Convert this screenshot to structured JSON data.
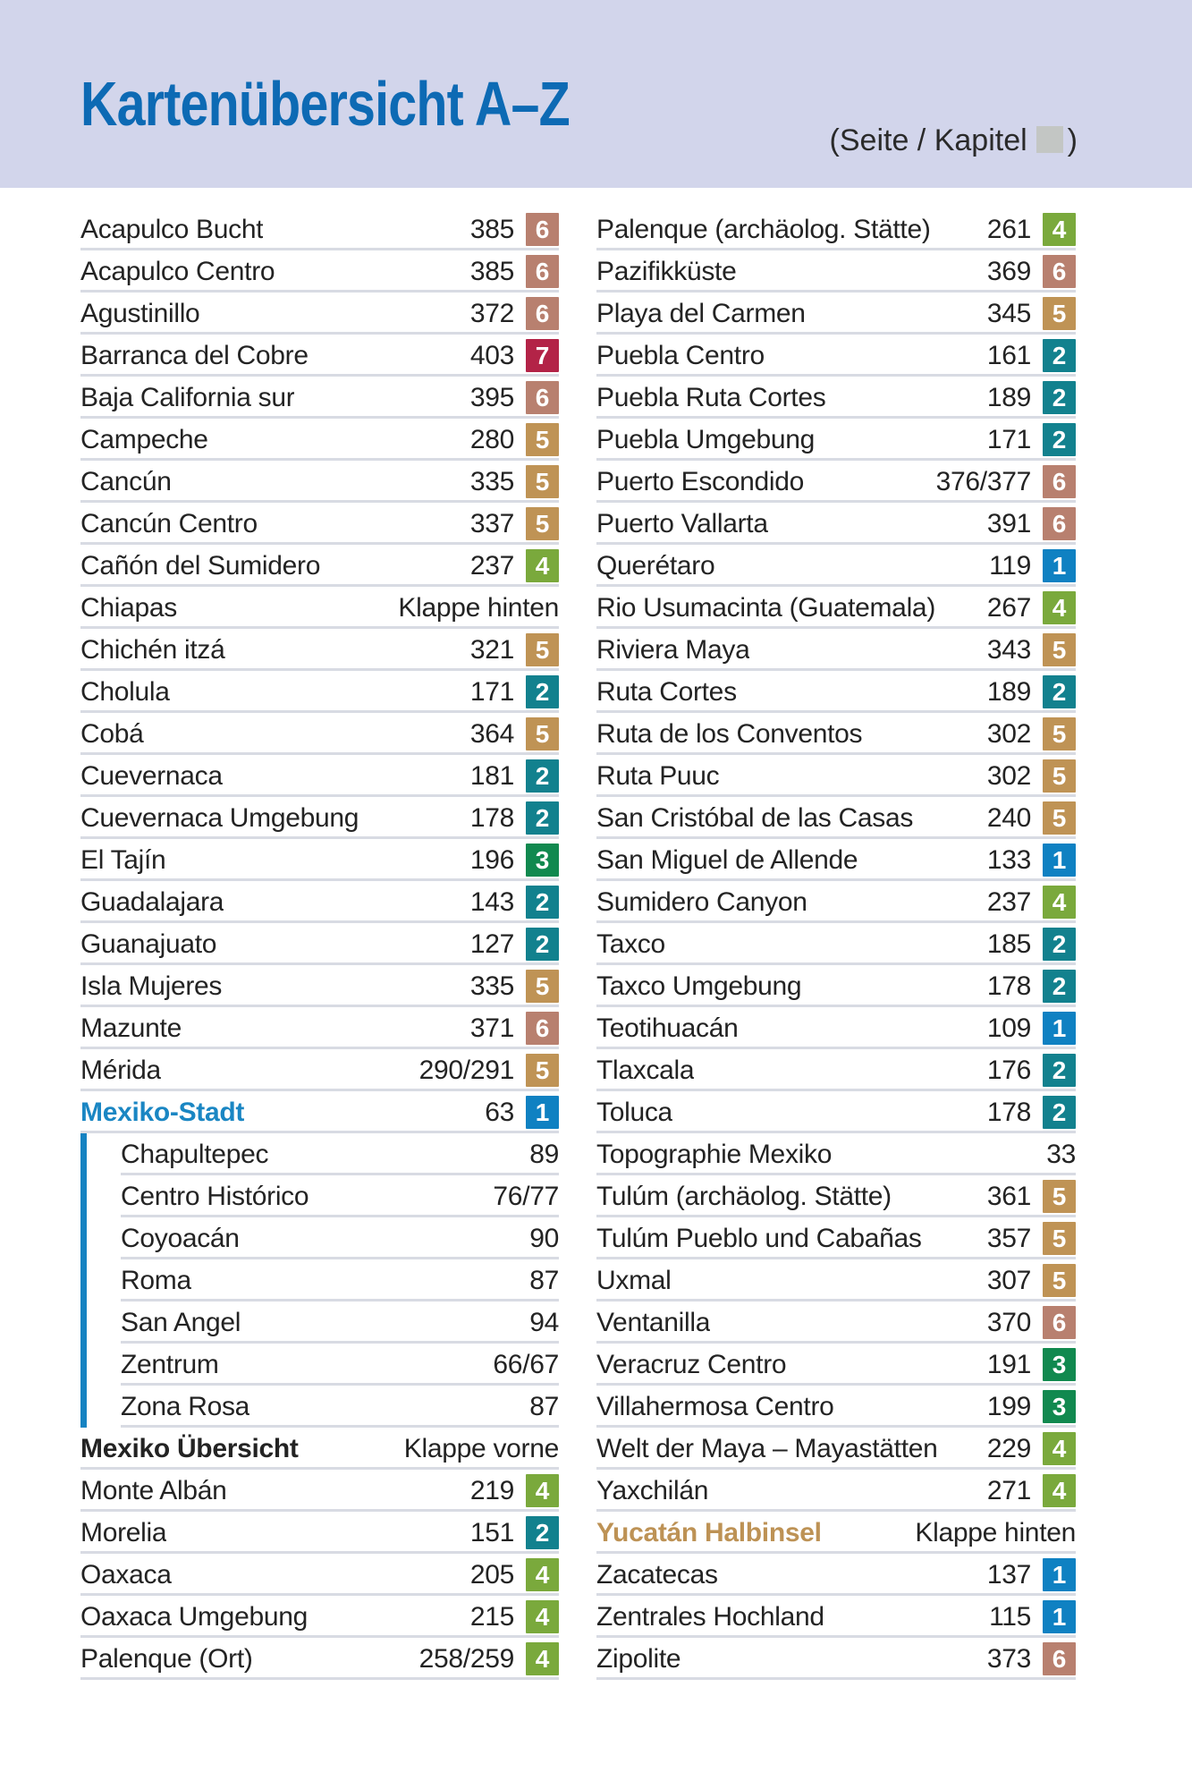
{
  "header": {
    "title": "Kartenübersicht A–Z",
    "legend_prefix": "(Seite / Kapitel",
    "legend_suffix": ")"
  },
  "colors": {
    "header_bg": "#d2d5eb",
    "title_blue": "#0d6ab4",
    "text": "#232323",
    "separator": "#d8dbe3",
    "sub_group_bar": "#1583c2",
    "highlight_blue": "#1a86c3",
    "highlight_tan": "#bd9255",
    "legend_box_gray": "#c3c6c4"
  },
  "badge_colors": {
    "1": "#0f81c2",
    "2": "#12818e",
    "3": "#11894f",
    "4": "#7aa93c",
    "5": "#bf9355",
    "6": "#b8806f",
    "7": "#b32347"
  },
  "index": {
    "columns": {
      "left": [
        {
          "name": "Acapulco Bucht",
          "page": "385",
          "ch": "6"
        },
        {
          "name": "Acapulco Centro",
          "page": "385",
          "ch": "6"
        },
        {
          "name": "Agustinillo",
          "page": "372",
          "ch": "6"
        },
        {
          "name": "Barranca del Cobre",
          "page": "403",
          "ch": "7"
        },
        {
          "name": "Baja California sur",
          "page": "395",
          "ch": "6"
        },
        {
          "name": "Campeche",
          "page": "280",
          "ch": "5"
        },
        {
          "name": "Cancún",
          "page": "335",
          "ch": "5"
        },
        {
          "name": "Cancún Centro",
          "page": "337",
          "ch": "5"
        },
        {
          "name": "Cañón del Sumidero",
          "page": "237",
          "ch": "4"
        },
        {
          "name": "Chiapas",
          "page": "Klappe hinten"
        },
        {
          "name": "Chichén itzá",
          "page": "321",
          "ch": "5"
        },
        {
          "name": "Cholula",
          "page": "171",
          "ch": "2"
        },
        {
          "name": "Cobá",
          "page": "364",
          "ch": "5"
        },
        {
          "name": "Cuevernaca",
          "page": "181",
          "ch": "2"
        },
        {
          "name": "Cuevernaca Umgebung",
          "page": "178",
          "ch": "2"
        },
        {
          "name": "El Tajín",
          "page": "196",
          "ch": "3"
        },
        {
          "name": "Guadalajara",
          "page": "143",
          "ch": "2"
        },
        {
          "name": "Guanajuato",
          "page": "127",
          "ch": "2"
        },
        {
          "name": "Isla Mujeres",
          "page": "335",
          "ch": "5"
        },
        {
          "name": "Mazunte",
          "page": "371",
          "ch": "6"
        },
        {
          "name": "Mérida",
          "page": "290/291",
          "ch": "5"
        },
        {
          "name": "Mexiko-Stadt",
          "page": "63",
          "ch": "1",
          "em": "blue"
        },
        {
          "name": "Chapultepec",
          "page": "89",
          "sub": true
        },
        {
          "name": "Centro Histórico",
          "page": "76/77",
          "sub": true
        },
        {
          "name": "Coyoacán",
          "page": "90",
          "sub": true
        },
        {
          "name": "Roma",
          "page": "87",
          "sub": true
        },
        {
          "name": "San Angel",
          "page": "94",
          "sub": true
        },
        {
          "name": "Zentrum",
          "page": "66/67",
          "sub": true
        },
        {
          "name": "Zona Rosa",
          "page": "87",
          "sub": true
        },
        {
          "name": "Mexiko Übersicht",
          "page": "Klappe vorne",
          "em": "bold"
        },
        {
          "name": "Monte Albán",
          "page": "219",
          "ch": "4"
        },
        {
          "name": "Morelia",
          "page": "151",
          "ch": "2"
        },
        {
          "name": "Oaxaca",
          "page": "205",
          "ch": "4"
        },
        {
          "name": "Oaxaca Umgebung",
          "page": "215",
          "ch": "4"
        },
        {
          "name": "Palenque (Ort)",
          "page": "258/259",
          "ch": "4"
        }
      ],
      "right": [
        {
          "name": "Palenque (archäolog. Stätte)",
          "page": "261",
          "ch": "4"
        },
        {
          "name": "Pazifikküste",
          "page": "369",
          "ch": "6"
        },
        {
          "name": "Playa del Carmen",
          "page": "345",
          "ch": "5"
        },
        {
          "name": "Puebla Centro",
          "page": "161",
          "ch": "2"
        },
        {
          "name": "Puebla Ruta Cortes",
          "page": "189",
          "ch": "2"
        },
        {
          "name": "Puebla Umgebung",
          "page": "171",
          "ch": "2"
        },
        {
          "name": "Puerto Escondido",
          "page": "376/377",
          "ch": "6"
        },
        {
          "name": "Puerto Vallarta",
          "page": "391",
          "ch": "6"
        },
        {
          "name": "Querétaro",
          "page": "119",
          "ch": "1"
        },
        {
          "name": "Rio Usumacinta (Guatemala)",
          "page": "267",
          "ch": "4"
        },
        {
          "name": "Riviera Maya",
          "page": "343",
          "ch": "5"
        },
        {
          "name": "Ruta Cortes",
          "page": "189",
          "ch": "2"
        },
        {
          "name": "Ruta de los Conventos",
          "page": "302",
          "ch": "5"
        },
        {
          "name": "Ruta Puuc",
          "page": "302",
          "ch": "5"
        },
        {
          "name": "San Cristóbal de las Casas",
          "page": "240",
          "ch": "5"
        },
        {
          "name": "San Miguel de Allende",
          "page": "133",
          "ch": "1"
        },
        {
          "name": "Sumidero Canyon",
          "page": "237",
          "ch": "4"
        },
        {
          "name": "Taxco",
          "page": "185",
          "ch": "2"
        },
        {
          "name": "Taxco Umgebung",
          "page": "178",
          "ch": "2"
        },
        {
          "name": "Teotihuacán",
          "page": "109",
          "ch": "1"
        },
        {
          "name": "Tlaxcala",
          "page": "176",
          "ch": "2"
        },
        {
          "name": "Toluca",
          "page": "178",
          "ch": "2"
        },
        {
          "name": "Topographie Mexiko",
          "page": "33"
        },
        {
          "name": "Tulúm (archäolog. Stätte)",
          "page": "361",
          "ch": "5"
        },
        {
          "name": "Tulúm Pueblo und Cabañas",
          "page": "357",
          "ch": "5"
        },
        {
          "name": "Uxmal",
          "page": "307",
          "ch": "5"
        },
        {
          "name": "Ventanilla",
          "page": "370",
          "ch": "6"
        },
        {
          "name": "Veracruz Centro",
          "page": "191",
          "ch": "3"
        },
        {
          "name": "Villahermosa Centro",
          "page": "199",
          "ch": "3"
        },
        {
          "name": "Welt der Maya – Mayastätten",
          "page": "229",
          "ch": "4"
        },
        {
          "name": "Yaxchilán",
          "page": "271",
          "ch": "4"
        },
        {
          "name": "Yucatán Halbinsel",
          "page": "Klappe hinten",
          "em": "tan"
        },
        {
          "name": "Zacatecas",
          "page": "137",
          "ch": "1"
        },
        {
          "name": "Zentrales Hochland",
          "page": "115",
          "ch": "1"
        },
        {
          "name": "Zipolite",
          "page": "373",
          "ch": "6"
        }
      ]
    }
  }
}
